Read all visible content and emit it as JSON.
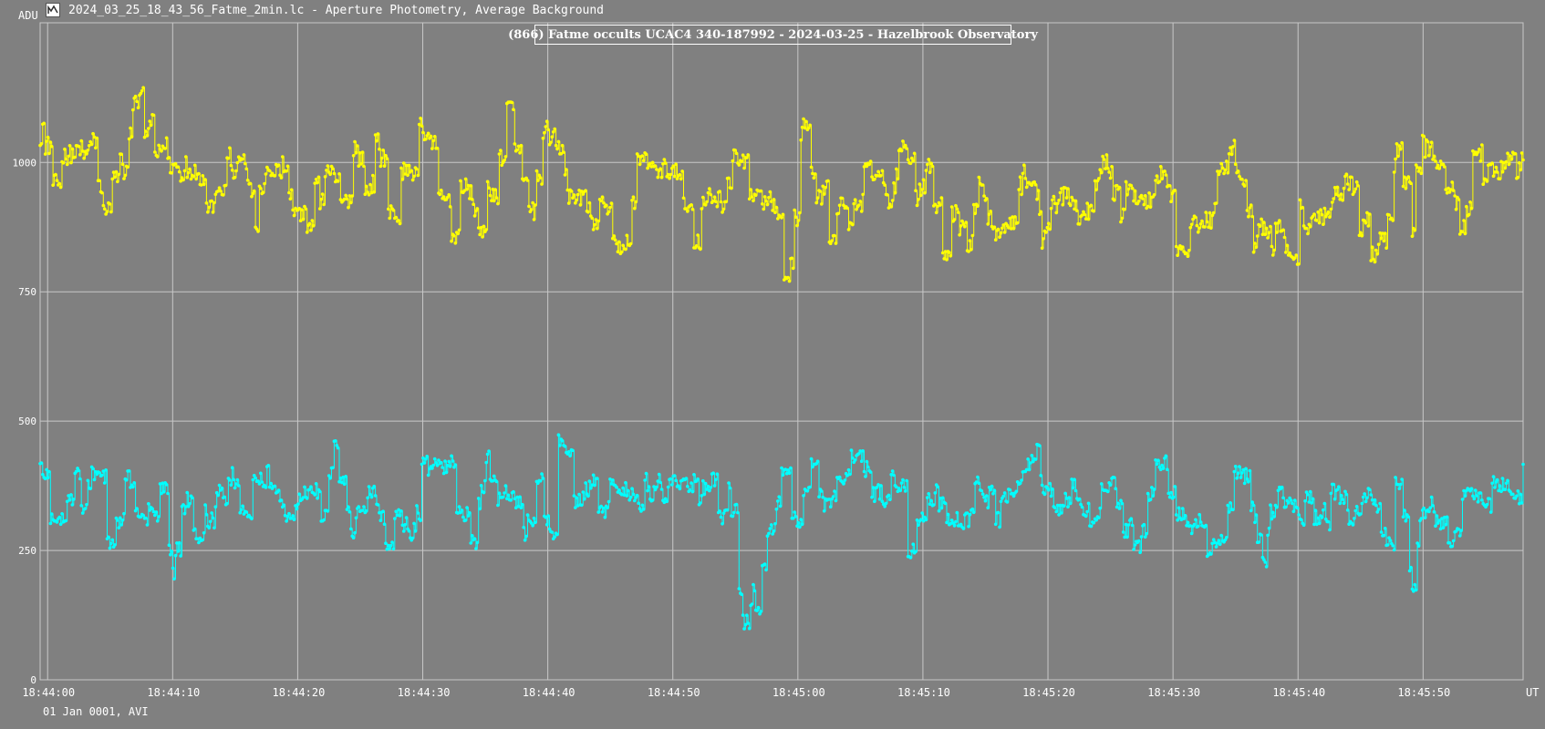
{
  "window": {
    "icon": "lightcurve-app-icon",
    "title": "2024_03_25_18_43_56_Fatme_2min.lc - Aperture Photometry, Average Background"
  },
  "footer": {
    "date_label": "01 Jan 0001, AVI"
  },
  "colors": {
    "background": "#808080",
    "grid": "#c8c8c8",
    "axis_text": "#ffffff",
    "target_series": "#ffff00",
    "comparison_series": "#00ffff"
  },
  "chart_data": {
    "type": "line",
    "title": "(866) Fatme occults UCAC4 340-187992 - 2024-03-25 - Hazelbrook Observatory",
    "ylabel": "ADU",
    "xlabel": "UT",
    "ylim": [
      0,
      1270
    ],
    "xlim": [
      "18:43:59.4",
      "18:45:58.0"
    ],
    "y_ticks": [
      0,
      250,
      500,
      750,
      1000
    ],
    "x_ticks": [
      "18:44:00",
      "18:44:10",
      "18:44:20",
      "18:44:30",
      "18:44:40",
      "18:44:50",
      "18:45:00",
      "18:45:10",
      "18:45:20",
      "18:45:30",
      "18:45:40",
      "18:45:50"
    ],
    "grid": true,
    "markers": true,
    "series": [
      {
        "role": "target",
        "color": "#ffff00",
        "x_start": "18:43:59.4",
        "x_end": "18:45:58.0",
        "keyframes": [
          [
            "18:43:59.4",
            1065
          ],
          [
            "18:44:00.5",
            960
          ],
          [
            "18:44:01.5",
            1050
          ],
          [
            "18:44:02.5",
            980
          ],
          [
            "18:44:03.5",
            1030
          ],
          [
            "18:44:04.5",
            910
          ],
          [
            "18:44:05.5",
            960
          ],
          [
            "18:44:06.5",
            1060
          ],
          [
            "18:44:07.3",
            1150
          ],
          [
            "18:44:08.3",
            1040
          ],
          [
            "18:44:09.3",
            1035
          ],
          [
            "18:44:10.3",
            960
          ],
          [
            "18:44:11.5",
            1020
          ],
          [
            "18:44:12.5",
            950
          ],
          [
            "18:44:13.5",
            910
          ],
          [
            "18:44:14.5",
            1000
          ],
          [
            "18:44:15.5",
            1010
          ],
          [
            "18:44:16.5",
            880
          ],
          [
            "18:44:17.5",
            1020
          ],
          [
            "18:44:18.5",
            990
          ],
          [
            "18:44:19.5",
            920
          ],
          [
            "18:44:20.5",
            900
          ],
          [
            "18:44:21.5",
            940
          ],
          [
            "18:44:22.5",
            960
          ],
          [
            "18:44:23.5",
            900
          ],
          [
            "18:44:24.5",
            1040
          ],
          [
            "18:44:25.5",
            900
          ],
          [
            "18:44:26.5",
            1050
          ],
          [
            "18:44:27.5",
            860
          ],
          [
            "18:44:28.5",
            1000
          ],
          [
            "18:44:29.5",
            1030
          ],
          [
            "18:44:30.5",
            1060
          ],
          [
            "18:44:31.5",
            930
          ],
          [
            "18:44:32.5",
            880
          ],
          [
            "18:44:33.5",
            960
          ],
          [
            "18:44:34.5",
            830
          ],
          [
            "18:44:35.5",
            960
          ],
          [
            "18:44:36.5",
            1090
          ],
          [
            "18:44:37.5",
            1050
          ],
          [
            "18:44:38.5",
            920
          ],
          [
            "18:44:39.5",
            1040
          ],
          [
            "18:44:40.5",
            1000
          ],
          [
            "18:44:41.5",
            960
          ],
          [
            "18:44:42.5",
            940
          ],
          [
            "18:44:43.5",
            840
          ],
          [
            "18:44:44.5",
            960
          ],
          [
            "18:44:45.5",
            820
          ],
          [
            "18:44:46.5",
            900
          ],
          [
            "18:44:47.5",
            1010
          ],
          [
            "18:44:48.5",
            960
          ],
          [
            "18:44:49.5",
            980
          ],
          [
            "18:44:50.5",
            950
          ],
          [
            "18:44:51.5",
            860
          ],
          [
            "18:44:52.5",
            950
          ],
          [
            "18:44:53.5",
            940
          ],
          [
            "18:44:54.5",
            980
          ],
          [
            "18:44:55.5",
            1000
          ],
          [
            "18:44:56.5",
            920
          ],
          [
            "18:44:57.5",
            900
          ],
          [
            "18:44:58.5",
            880
          ],
          [
            "18:44:59.2",
            750
          ],
          [
            "18:44:59.8",
            950
          ],
          [
            "18:45:00.5",
            1060
          ],
          [
            "18:45:01.5",
            960
          ],
          [
            "18:45:02.5",
            870
          ],
          [
            "18:45:03.5",
            930
          ],
          [
            "18:45:04.5",
            900
          ],
          [
            "18:45:05.5",
            1010
          ],
          [
            "18:45:06.5",
            960
          ],
          [
            "18:45:07.5",
            960
          ],
          [
            "18:45:08.5",
            1040
          ],
          [
            "18:45:09.5",
            930
          ],
          [
            "18:45:10.5",
            1010
          ],
          [
            "18:45:11.5",
            840
          ],
          [
            "18:45:12.5",
            960
          ],
          [
            "18:45:13.5",
            810
          ],
          [
            "18:45:14.5",
            990
          ],
          [
            "18:45:15.5",
            870
          ],
          [
            "18:45:16.5",
            900
          ],
          [
            "18:45:17.5",
            930
          ],
          [
            "18:45:18.5",
            980
          ],
          [
            "18:45:19.5",
            850
          ],
          [
            "18:45:20.5",
            960
          ],
          [
            "18:45:21.5",
            940
          ],
          [
            "18:45:22.5",
            880
          ],
          [
            "18:45:23.5",
            900
          ],
          [
            "18:45:24.5",
            1050
          ],
          [
            "18:45:25.5",
            880
          ],
          [
            "18:45:26.5",
            990
          ],
          [
            "18:45:27.5",
            920
          ],
          [
            "18:45:28.5",
            990
          ],
          [
            "18:45:29.5",
            970
          ],
          [
            "18:45:30.5",
            800
          ],
          [
            "18:45:31.5",
            900
          ],
          [
            "18:45:32.5",
            880
          ],
          [
            "18:45:33.5",
            960
          ],
          [
            "18:45:34.5",
            1030
          ],
          [
            "18:45:35.5",
            940
          ],
          [
            "18:45:36.5",
            860
          ],
          [
            "18:45:37.5",
            850
          ],
          [
            "18:45:38.5",
            870
          ],
          [
            "18:45:39.2",
            760
          ],
          [
            "18:45:40.0",
            880
          ],
          [
            "18:45:41.0",
            920
          ],
          [
            "18:45:42.0",
            910
          ],
          [
            "18:45:43.0",
            930
          ],
          [
            "18:45:44.0",
            980
          ],
          [
            "18:45:45.0",
            870
          ],
          [
            "18:45:46.0",
            840
          ],
          [
            "18:45:47.0",
            870
          ],
          [
            "18:45:48.0",
            1020
          ],
          [
            "18:45:49.0",
            880
          ],
          [
            "18:45:50.0",
            1040
          ],
          [
            "18:45:51.0",
            1020
          ],
          [
            "18:45:52.0",
            930
          ],
          [
            "18:45:53.0",
            880
          ],
          [
            "18:45:54.0",
            1000
          ],
          [
            "18:45:55.0",
            960
          ],
          [
            "18:45:56.0",
            990
          ],
          [
            "18:45:57.0",
            1020
          ],
          [
            "18:45:58.0",
            1000
          ]
        ]
      },
      {
        "role": "comparison",
        "color": "#00ffff",
        "x_start": "18:43:59.4",
        "x_end": "18:45:58.0",
        "keyframes": [
          [
            "18:43:59.4",
            410
          ],
          [
            "18:44:00.2",
            300
          ],
          [
            "18:44:01.0",
            320
          ],
          [
            "18:44:02.0",
            380
          ],
          [
            "18:44:03.0",
            350
          ],
          [
            "18:44:04.0",
            400
          ],
          [
            "18:44:05.0",
            260
          ],
          [
            "18:44:06.0",
            380
          ],
          [
            "18:44:07.0",
            340
          ],
          [
            "18:44:08.0",
            310
          ],
          [
            "18:44:09.0",
            350
          ],
          [
            "18:44:10.0",
            230
          ],
          [
            "18:44:11.0",
            360
          ],
          [
            "18:44:12.0",
            300
          ],
          [
            "18:44:13.0",
            330
          ],
          [
            "18:44:14.0",
            350
          ],
          [
            "18:44:15.0",
            380
          ],
          [
            "18:44:16.0",
            320
          ],
          [
            "18:44:17.0",
            420
          ],
          [
            "18:44:18.0",
            340
          ],
          [
            "18:44:19.0",
            300
          ],
          [
            "18:44:20.0",
            320
          ],
          [
            "18:44:21.0",
            390
          ],
          [
            "18:44:22.0",
            310
          ],
          [
            "18:44:23.0",
            450
          ],
          [
            "18:44:24.0",
            300
          ],
          [
            "18:44:25.0",
            340
          ],
          [
            "18:44:26.0",
            370
          ],
          [
            "18:44:27.0",
            250
          ],
          [
            "18:44:28.0",
            330
          ],
          [
            "18:44:29.0",
            260
          ],
          [
            "18:44:30.0",
            400
          ],
          [
            "18:44:31.0",
            380
          ],
          [
            "18:44:32.0",
            410
          ],
          [
            "18:44:33.0",
            320
          ],
          [
            "18:44:34.0",
            230
          ],
          [
            "18:44:35.0",
            440
          ],
          [
            "18:44:36.0",
            330
          ],
          [
            "18:44:37.0",
            370
          ],
          [
            "18:44:38.0",
            290
          ],
          [
            "18:44:39.0",
            390
          ],
          [
            "18:44:40.0",
            260
          ],
          [
            "18:44:41.0",
            470
          ],
          [
            "18:44:42.0",
            330
          ],
          [
            "18:44:43.0",
            380
          ],
          [
            "18:44:44.0",
            310
          ],
          [
            "18:44:45.0",
            370
          ],
          [
            "18:44:46.0",
            360
          ],
          [
            "18:44:47.0",
            340
          ],
          [
            "18:44:48.0",
            380
          ],
          [
            "18:44:49.0",
            350
          ],
          [
            "18:44:50.0",
            370
          ],
          [
            "18:44:51.0",
            360
          ],
          [
            "18:44:52.0",
            380
          ],
          [
            "18:44:53.0",
            360
          ],
          [
            "18:44:54.0",
            330
          ],
          [
            "18:44:54.8",
            350
          ],
          [
            "18:44:55.3",
            190
          ],
          [
            "18:44:55.8",
            70
          ],
          [
            "18:44:56.3",
            160
          ],
          [
            "18:44:57.0",
            150
          ],
          [
            "18:44:57.5",
            270
          ],
          [
            "18:44:58.0",
            360
          ],
          [
            "18:44:59.0",
            380
          ],
          [
            "18:45:00.0",
            300
          ],
          [
            "18:45:01.0",
            400
          ],
          [
            "18:45:02.0",
            320
          ],
          [
            "18:45:03.0",
            370
          ],
          [
            "18:45:04.0",
            390
          ],
          [
            "18:45:05.0",
            450
          ],
          [
            "18:45:06.0",
            380
          ],
          [
            "18:45:07.0",
            350
          ],
          [
            "18:45:08.0",
            380
          ],
          [
            "18:45:09.0",
            230
          ],
          [
            "18:45:10.0",
            340
          ],
          [
            "18:45:11.0",
            360
          ],
          [
            "18:45:12.0",
            330
          ],
          [
            "18:45:13.0",
            280
          ],
          [
            "18:45:14.0",
            350
          ],
          [
            "18:45:15.0",
            370
          ],
          [
            "18:45:16.0",
            330
          ],
          [
            "18:45:17.0",
            380
          ],
          [
            "18:45:18.0",
            400
          ],
          [
            "18:45:19.0",
            440
          ],
          [
            "18:45:20.0",
            360
          ],
          [
            "18:45:21.0",
            320
          ],
          [
            "18:45:22.0",
            370
          ],
          [
            "18:45:23.0",
            330
          ],
          [
            "18:45:24.0",
            350
          ],
          [
            "18:45:25.0",
            370
          ],
          [
            "18:45:26.0",
            300
          ],
          [
            "18:45:27.0",
            260
          ],
          [
            "18:45:28.0",
            330
          ],
          [
            "18:45:29.0",
            440
          ],
          [
            "18:45:30.0",
            300
          ],
          [
            "18:45:31.0",
            280
          ],
          [
            "18:45:32.0",
            320
          ],
          [
            "18:45:33.0",
            260
          ],
          [
            "18:45:34.0",
            310
          ],
          [
            "18:45:35.0",
            380
          ],
          [
            "18:45:36.0",
            400
          ],
          [
            "18:45:37.0",
            210
          ],
          [
            "18:45:38.0",
            340
          ],
          [
            "18:45:39.0",
            380
          ],
          [
            "18:45:40.0",
            320
          ],
          [
            "18:45:41.0",
            350
          ],
          [
            "18:45:42.0",
            300
          ],
          [
            "18:45:43.0",
            360
          ],
          [
            "18:45:44.0",
            330
          ],
          [
            "18:45:45.0",
            380
          ],
          [
            "18:45:46.0",
            330
          ],
          [
            "18:45:47.0",
            260
          ],
          [
            "18:45:48.0",
            420
          ],
          [
            "18:45:49.0",
            180
          ],
          [
            "18:45:50.0",
            370
          ],
          [
            "18:45:51.0",
            300
          ],
          [
            "18:45:52.0",
            250
          ],
          [
            "18:45:53.0",
            340
          ],
          [
            "18:45:54.0",
            370
          ],
          [
            "18:45:55.0",
            360
          ],
          [
            "18:45:56.0",
            360
          ],
          [
            "18:45:58.0",
            380
          ]
        ]
      }
    ]
  }
}
